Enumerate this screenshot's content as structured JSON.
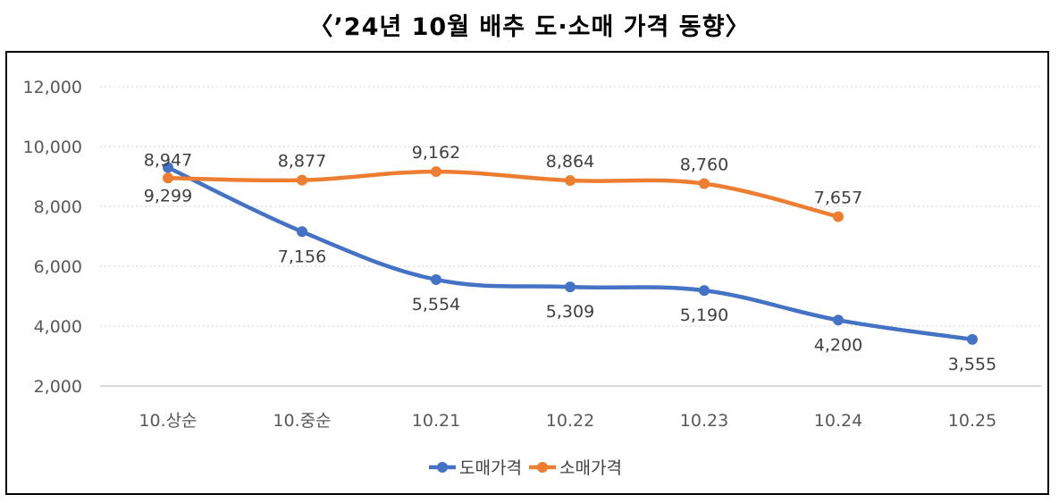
{
  "title": "〈’24년 10월 배추 도·소매 가격 동향〉",
  "chart_data": {
    "type": "line",
    "title": "〈’24년 10월 배추 도·소매 가격 동향〉",
    "categories": [
      "10.상순",
      "10.중순",
      "10.21",
      "10.22",
      "10.23",
      "10.24",
      "10.25"
    ],
    "ylim": [
      2000,
      12000
    ],
    "yticks": [
      2000,
      4000,
      6000,
      8000,
      10000,
      12000
    ],
    "ytick_labels": [
      "2,000",
      "4,000",
      "6,000",
      "8,000",
      "10,000",
      "12,000"
    ],
    "grid": true,
    "legend_position": "bottom",
    "series": [
      {
        "name": "도매가격",
        "color": "#4472C4",
        "values": [
          9299,
          7156,
          5554,
          5309,
          5190,
          4200,
          3555
        ],
        "labels": [
          "9,299",
          "7,156",
          "5,554",
          "5,309",
          "5,190",
          "4,200",
          "3,555"
        ]
      },
      {
        "name": "소매가격",
        "color": "#ED7D31",
        "values": [
          8947,
          8877,
          9162,
          8864,
          8760,
          7657,
          null
        ],
        "labels": [
          "8,947",
          "8,877",
          "9,162",
          "8,864",
          "8,760",
          "7,657",
          null
        ]
      }
    ]
  }
}
